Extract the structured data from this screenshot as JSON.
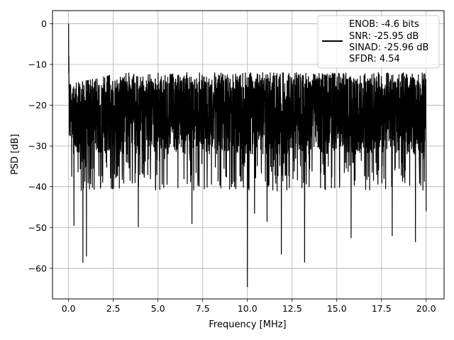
{
  "chart_data": {
    "type": "line",
    "title": "",
    "xlabel": "Frequency [MHz]",
    "ylabel": "PSD [dB]",
    "xlim": [
      -0.9,
      21.0
    ],
    "ylim": [
      -67.5,
      3.2
    ],
    "x_ticks": [
      0.0,
      2.5,
      5.0,
      7.5,
      10.0,
      12.5,
      15.0,
      17.5,
      20.0
    ],
    "x_tick_labels": [
      "0.0",
      "2.5",
      "5.0",
      "7.5",
      "10.0",
      "12.5",
      "15.0",
      "17.5",
      "20.0"
    ],
    "y_ticks": [
      0,
      -10,
      -20,
      -30,
      -40,
      -50,
      -60
    ],
    "y_tick_labels": [
      "0",
      "−10",
      "−20",
      "−30",
      "−40",
      "−50",
      "−60"
    ],
    "grid": true,
    "legend_position": "top-right",
    "legend": {
      "lines": [
        "ENOB: -4.6 bits",
        "SNR: -25.95 dB",
        "SINAD: -25.96 dB",
        "SFDR: 4.54"
      ]
    },
    "series": [
      {
        "color": "#000000",
        "x_range": [
          0.0,
          20.0
        ],
        "noise_floor_mean_db": -22,
        "upper_envelope_db": -13,
        "peak": {
          "x": 0.0,
          "y": 0.0
        },
        "deep_nulls": [
          {
            "x": 0.3,
            "y": -49.5
          },
          {
            "x": 0.8,
            "y": -58.5
          },
          {
            "x": 1.0,
            "y": -57
          },
          {
            "x": 3.9,
            "y": -49.8
          },
          {
            "x": 6.9,
            "y": -49
          },
          {
            "x": 10.0,
            "y": -64.5
          },
          {
            "x": 10.4,
            "y": -46.5
          },
          {
            "x": 11.1,
            "y": -48.5
          },
          {
            "x": 11.9,
            "y": -56.5
          },
          {
            "x": 13.2,
            "y": -58.5
          },
          {
            "x": 15.8,
            "y": -52.5
          },
          {
            "x": 18.1,
            "y": -52
          },
          {
            "x": 19.4,
            "y": -53.5
          },
          {
            "x": 20.0,
            "y": -46
          }
        ]
      }
    ]
  }
}
